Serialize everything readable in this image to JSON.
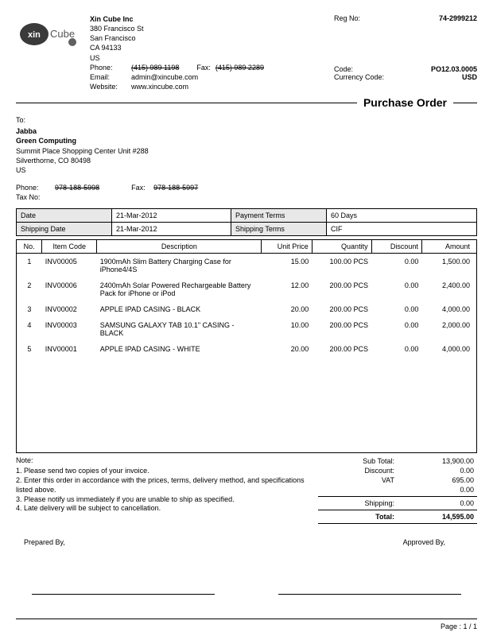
{
  "company": {
    "name": "Xin Cube Inc",
    "addr1": "380 Francisco St",
    "city": "San Francisco",
    "zip": "CA 94133",
    "country": "US",
    "phone_label": "Phone:",
    "phone": "(415) 989 1198",
    "fax_label": "Fax:",
    "fax": "(415) 989 2289",
    "email_label": "Email:",
    "email": "admin@xincube.com",
    "website_label": "Website:",
    "website": "www.xincube.com"
  },
  "reg": {
    "label": "Reg No:",
    "value": "74-2999212"
  },
  "code": {
    "label": "Code:",
    "value": "PO12.03.0005"
  },
  "currency": {
    "label": "Currency Code:",
    "value": "USD"
  },
  "title": "Purchase Order",
  "to": {
    "label": "To:",
    "name": "Jabba",
    "company": "Green Computing",
    "addr1": "Summit Place Shopping Center  Unit #288",
    "addr2": "Silverthorne, CO 80498",
    "country": "US",
    "phone_label": "Phone:",
    "phone": "978-188-5998",
    "fax_label": "Fax:",
    "fax": "978-188-5997",
    "taxno_label": "Tax No:"
  },
  "meta": {
    "date_label": "Date",
    "date_value": "21-Mar-2012",
    "payment_label": "Payment Terms",
    "payment_value": "60 Days",
    "ship_label": "Shipping Date",
    "ship_value": "21-Mar-2012",
    "shipterms_label": "Shipping Terms",
    "shipterms_value": "CIF"
  },
  "items_header": {
    "no": "No.",
    "code": "Item Code",
    "desc": "Description",
    "price": "Unit Price",
    "qty": "Quantity",
    "disc": "Discount",
    "amt": "Amount"
  },
  "items": [
    {
      "no": "1",
      "code": "INV00005",
      "desc": "1900mAh Slim Battery Charging Case for iPhone4/4S",
      "price": "15.00",
      "qty": "100.00 PCS",
      "disc": "0.00",
      "amt": "1,500.00"
    },
    {
      "no": "2",
      "code": "INV00006",
      "desc": "2400mAh Solar Powered Rechargeable Battery Pack for iPhone or iPod",
      "price": "12.00",
      "qty": "200.00 PCS",
      "disc": "0.00",
      "amt": "2,400.00"
    },
    {
      "no": "3",
      "code": "INV00002",
      "desc": "APPLE IPAD CASING - BLACK",
      "price": "20.00",
      "qty": "200.00 PCS",
      "disc": "0.00",
      "amt": "4,000.00"
    },
    {
      "no": "4",
      "code": "INV00003",
      "desc": "SAMSUNG GALAXY TAB 10.1\" CASING - BLACK",
      "price": "10.00",
      "qty": "200.00 PCS",
      "disc": "0.00",
      "amt": "2,000.00"
    },
    {
      "no": "5",
      "code": "INV00001",
      "desc": "APPLE IPAD CASING - WHITE",
      "price": "20.00",
      "qty": "200.00 PCS",
      "disc": "0.00",
      "amt": "4,000.00"
    }
  ],
  "notes": {
    "title": "Note:",
    "n1": "1. Please send two copies of your invoice.",
    "n2": "2. Enter this order in accordance with the prices, terms, delivery method, and specifications listed above.",
    "n3": "3. Please notify us immediately if you are unable to ship as specified.",
    "n4": "4. Late delivery will be subject to cancellation."
  },
  "totals": {
    "subtotal_label": "Sub Total:",
    "subtotal": "13,900.00",
    "discount_label": "Discount:",
    "discount": "0.00",
    "vat_label": "VAT",
    "vat": "695.00",
    "blank": "0.00",
    "shipping_label": "Shipping:",
    "shipping": "0.00",
    "total_label": "Total:",
    "total": "14,595.00"
  },
  "signatures": {
    "prepared": "Prepared By,",
    "approved": "Approved By,"
  },
  "page": "Page : 1 / 1",
  "colors": {
    "text": "#000000",
    "header_bg": "#e8e8e8",
    "logo_dark": "#3a3a3a",
    "logo_ball": "#606060"
  }
}
